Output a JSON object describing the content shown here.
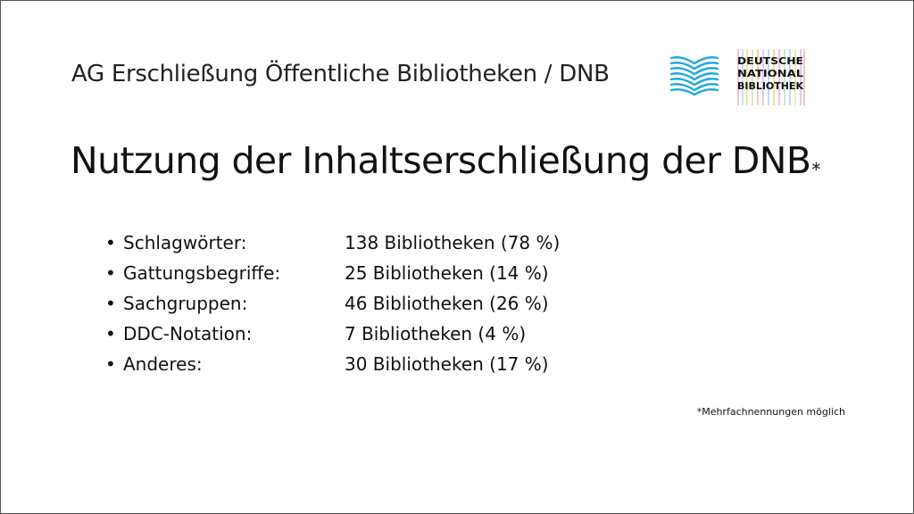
{
  "header": {
    "title": "AG Erschließung Öffentliche Bibliotheken / DNB"
  },
  "logo": {
    "book_icon": "blue-open-book-logo",
    "dnb_lines": [
      "DEUTSCHE",
      "NATIONAL",
      "BIBLIOTHEK"
    ],
    "accent_color": "#1ea7e1"
  },
  "slide": {
    "title": "Nutzung der Inhaltserschließung der DNB",
    "title_marker": "*",
    "footnote": "*Mehrfachnennungen möglich"
  },
  "items": [
    {
      "bullet": "•",
      "label": "Schlagwörter:",
      "value": "138 Bibliotheken (78 %)"
    },
    {
      "bullet": "•",
      "label": "Gattungsbegriffe:",
      "value": "25 Bibliotheken (14 %)"
    },
    {
      "bullet": "•",
      "label": "Sachgruppen:",
      "value": "46 Bibliotheken (26 %)"
    },
    {
      "bullet": "•",
      "label": "DDC-Notation:",
      "value": "7 Bibliotheken (4 %)"
    },
    {
      "bullet": "•",
      "label": "Anderes:",
      "value": "30 Bibliotheken (17 %)"
    }
  ]
}
